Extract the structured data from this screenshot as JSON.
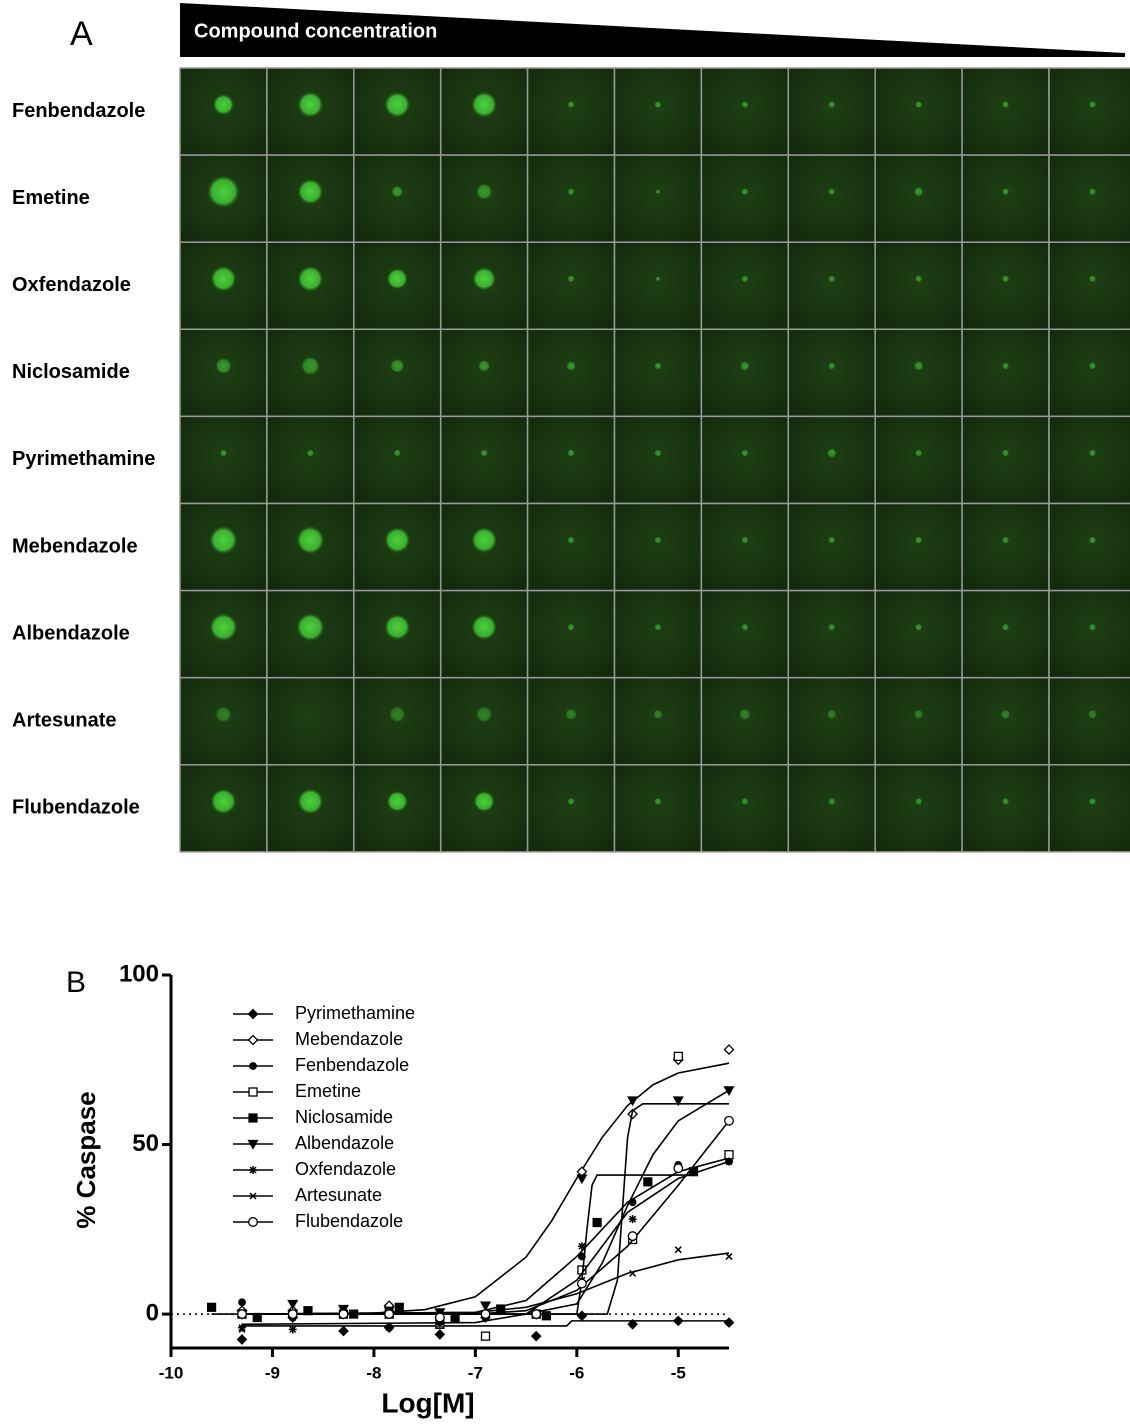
{
  "panel_a": {
    "label": "A",
    "banner": "Compound concentration",
    "rows": [
      "Fenbendazole",
      "Emetine",
      "Oxfendazole",
      "Niclosamide",
      "Pyrimethamine",
      "Mebendazole",
      "Albendazole",
      "Artesunate",
      "Flubendazole"
    ]
  },
  "chart_data": {
    "type": "scatter",
    "panel_label": "B",
    "x_label": "Log[M]",
    "y_label": "% Caspase",
    "xlim": [
      -10,
      -4.5
    ],
    "ylim": [
      -10,
      100
    ],
    "xticks": [
      -10,
      -9,
      -8,
      -7,
      -6,
      -5
    ],
    "yticks": [
      0,
      50,
      100
    ],
    "hline": 0,
    "legend": "upper left",
    "series": [
      {
        "name": "Pyrimethamine",
        "color": "#000000",
        "marker": "diamond-filled",
        "x": [
          -9.3,
          -8.8,
          -8.3,
          -7.85,
          -7.35,
          -6.9,
          -6.4,
          -5.95,
          -5.45,
          -5,
          -4.5
        ],
        "values": [
          -7.5,
          -1,
          -5,
          -4,
          -6,
          -1,
          -6.5,
          -0.5,
          -3,
          -2,
          -2.5
        ],
        "fit": {
          "x": [
            -9.3,
            -6.1,
            -6.05,
            -4.5
          ],
          "values": [
            -3.5,
            -3.5,
            -2,
            -2
          ]
        }
      },
      {
        "name": "Mebendazole",
        "color": "#000000",
        "marker": "diamond-open",
        "x": [
          -9.3,
          -8.8,
          -8.3,
          -7.85,
          -7.35,
          -6.9,
          -6.4,
          -5.95,
          -5.45,
          -5,
          -4.5
        ],
        "values": [
          1,
          1,
          0,
          2.5,
          -1,
          0,
          0,
          42,
          59,
          75,
          78
        ],
        "fit": {
          "x": [
            -9.3,
            -8,
            -7.5,
            -7,
            -6.5,
            -6.25,
            -6,
            -5.75,
            -5.5,
            -5.25,
            -5,
            -4.5
          ],
          "values": [
            0,
            0.3,
            1.3,
            5.1,
            16.8,
            27.4,
            40.1,
            52.1,
            61.5,
            67.6,
            71.1,
            74
          ]
        }
      },
      {
        "name": "Fenbendazole",
        "color": "#000000",
        "marker": "circle-filled",
        "x": [
          -9.3,
          -8.8,
          -8.3,
          -7.85,
          -7.35,
          -6.9,
          -6.4,
          -5.95,
          -5.45,
          -5,
          -4.5
        ],
        "values": [
          3.5,
          0,
          0,
          0,
          0,
          0,
          0,
          17,
          33,
          44,
          45
        ],
        "fit": {
          "x": [
            -9.3,
            -7,
            -6.5,
            -6,
            -5.5,
            -5,
            -4.5
          ],
          "values": [
            0,
            0.5,
            4,
            17,
            33,
            42,
            46
          ]
        }
      },
      {
        "name": "Emetine",
        "color": "#000000",
        "marker": "square-open",
        "x": [
          -9.3,
          -8.8,
          -8.3,
          -7.85,
          -7.35,
          -6.9,
          -6.4,
          -5.95,
          -5.45,
          -5,
          -4.5
        ],
        "values": [
          0,
          0,
          0,
          0,
          -3,
          -6.5,
          0,
          13,
          22,
          76,
          47
        ],
        "fit": {
          "x": [
            -9.3,
            -6.5,
            -6,
            -5.75,
            -5.5,
            -5.25,
            -5,
            -4.5
          ],
          "values": [
            0,
            0,
            3,
            15,
            32,
            47,
            57,
            66
          ]
        }
      },
      {
        "name": "Niclosamide",
        "color": "#000000",
        "marker": "square-filled",
        "x": [
          -9.6,
          -9.15,
          -8.65,
          -8.2,
          -7.75,
          -7.2,
          -6.75,
          -6.3,
          -5.8,
          -5.3,
          -4.85
        ],
        "values": [
          2,
          -1,
          1,
          0,
          2,
          -1,
          1.5,
          -0.5,
          27,
          39,
          42
        ],
        "fit": {
          "x": [
            -9.6,
            -6,
            -5.95,
            -5.9,
            -5.85,
            -5.8,
            -4.85
          ],
          "values": [
            0,
            0,
            10,
            25,
            38,
            41,
            41
          ]
        }
      },
      {
        "name": "Albendazole",
        "color": "#000000",
        "marker": "triangle-down",
        "x": [
          -9.3,
          -8.8,
          -8.3,
          -7.85,
          -7.35,
          -6.9,
          -6.4,
          -5.95,
          -5.45,
          -5,
          -4.5
        ],
        "values": [
          0,
          3,
          1.5,
          1,
          0.5,
          2.5,
          0,
          40,
          63,
          63,
          66
        ],
        "fit": {
          "x": [
            -9.3,
            -5.7,
            -5.6,
            -5.55,
            -5.5,
            -5.45,
            -5.35,
            -4.5
          ],
          "values": [
            0,
            0,
            10,
            31,
            52,
            60,
            62,
            62
          ]
        }
      },
      {
        "name": "Oxfendazole",
        "color": "#000000",
        "marker": "asterisk",
        "x": [
          -9.3,
          -8.8,
          -8.3,
          -7.85,
          -7.35,
          -6.9,
          -6.4,
          -5.95,
          -5.45,
          -5,
          -4.5
        ],
        "values": [
          -4,
          -4.5,
          0,
          -4,
          -3,
          -1,
          0,
          20,
          28,
          43,
          45
        ],
        "fit": {
          "x": [
            -9.3,
            -7,
            -6.5,
            -6,
            -5.5,
            -5,
            -4.5
          ],
          "values": [
            -3,
            -2.5,
            0,
            10,
            30,
            40,
            45
          ]
        }
      },
      {
        "name": "Artesunate",
        "color": "#000000",
        "marker": "cross",
        "x": [
          -9.3,
          -8.8,
          -8.3,
          -7.85,
          -7.35,
          -6.9,
          -6.4,
          -5.95,
          -5.45,
          -5,
          -4.5
        ],
        "values": [
          -4.5,
          -1,
          1,
          0,
          -2,
          0,
          0,
          10,
          12,
          19,
          17
        ],
        "fit": {
          "x": [
            -9.3,
            -7,
            -6.5,
            -6,
            -5.5,
            -5,
            -4.5
          ],
          "values": [
            0,
            0.5,
            2,
            6,
            12,
            16,
            18
          ]
        }
      },
      {
        "name": "Flubendazole",
        "color": "#000000",
        "marker": "circle-open",
        "x": [
          -9.3,
          -8.8,
          -8.3,
          -7.85,
          -7.35,
          -6.9,
          -6.4,
          -5.95,
          -5.45,
          -5,
          -4.5
        ],
        "values": [
          0,
          0,
          0,
          0,
          -1,
          0,
          0,
          9,
          23,
          43,
          57
        ],
        "fit": {
          "x": [
            -9.3,
            -7,
            -6.5,
            -6,
            -5.5,
            -5,
            -4.5
          ],
          "values": [
            0,
            0,
            1,
            7,
            20,
            38,
            57
          ]
        }
      }
    ]
  }
}
